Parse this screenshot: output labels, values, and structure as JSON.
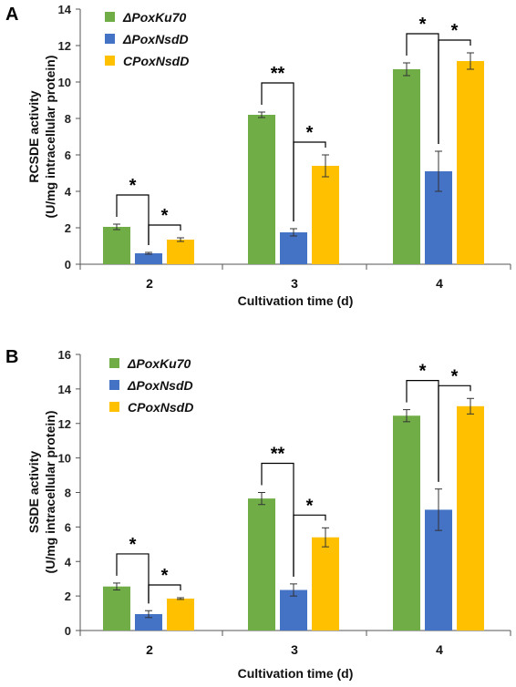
{
  "chart_data": [
    {
      "type": "bar",
      "panel_label": "A",
      "categories": [
        "2",
        "3",
        "4"
      ],
      "xlabel": "Cultivation time (d)",
      "ylabel_line1": "RCSDE activity",
      "ylabel_line2": "(U/mg intracellular protein)",
      "ylim": [
        0,
        14
      ],
      "yticks": [
        "0",
        "2",
        "4",
        "6",
        "8",
        "10",
        "12",
        "14"
      ],
      "series": [
        {
          "name": "ΔPoxKu70",
          "color": "#70ad47",
          "values": [
            2.05,
            8.2,
            10.7
          ],
          "errors": [
            0.15,
            0.15,
            0.35
          ]
        },
        {
          "name": "ΔPoxNsdD",
          "color": "#4472c4",
          "values": [
            0.6,
            1.75,
            5.1
          ],
          "errors": [
            0.05,
            0.2,
            1.1
          ]
        },
        {
          "name": "CPoxNsdD",
          "color": "#ffc000",
          "values": [
            1.35,
            5.4,
            11.15
          ],
          "errors": [
            0.1,
            0.6,
            0.45
          ]
        }
      ],
      "significance": [
        {
          "category": 0,
          "from": 0,
          "to": 1,
          "label": "*"
        },
        {
          "category": 0,
          "from": 1,
          "to": 2,
          "label": "*"
        },
        {
          "category": 1,
          "from": 0,
          "to": 1,
          "label": "**"
        },
        {
          "category": 1,
          "from": 1,
          "to": 2,
          "label": "*"
        },
        {
          "category": 2,
          "from": 0,
          "to": 1,
          "label": "*"
        },
        {
          "category": 2,
          "from": 1,
          "to": 2,
          "label": "*"
        }
      ]
    },
    {
      "type": "bar",
      "panel_label": "B",
      "categories": [
        "2",
        "3",
        "4"
      ],
      "xlabel": "Cultivation time (d)",
      "ylabel_line1": "SSDE activity",
      "ylabel_line2": "(U/mg intracellular protein)",
      "ylim": [
        0,
        16
      ],
      "yticks": [
        "0",
        "2",
        "4",
        "6",
        "8",
        "10",
        "12",
        "14",
        "16"
      ],
      "series": [
        {
          "name": "ΔPoxKu70",
          "color": "#70ad47",
          "values": [
            2.55,
            7.65,
            12.45
          ],
          "errors": [
            0.2,
            0.35,
            0.35
          ]
        },
        {
          "name": "ΔPoxNsdD",
          "color": "#4472c4",
          "values": [
            0.95,
            2.35,
            7.0
          ],
          "errors": [
            0.2,
            0.35,
            1.2
          ]
        },
        {
          "name": "CPoxNsdD",
          "color": "#ffc000",
          "values": [
            1.85,
            5.4,
            13.0
          ],
          "errors": [
            0.05,
            0.55,
            0.45
          ]
        }
      ],
      "significance": [
        {
          "category": 0,
          "from": 0,
          "to": 1,
          "label": "*"
        },
        {
          "category": 0,
          "from": 1,
          "to": 2,
          "label": "*"
        },
        {
          "category": 1,
          "from": 0,
          "to": 1,
          "label": "**"
        },
        {
          "category": 1,
          "from": 1,
          "to": 2,
          "label": "*"
        },
        {
          "category": 2,
          "from": 0,
          "to": 1,
          "label": "*"
        },
        {
          "category": 2,
          "from": 1,
          "to": 2,
          "label": "*"
        }
      ]
    }
  ]
}
